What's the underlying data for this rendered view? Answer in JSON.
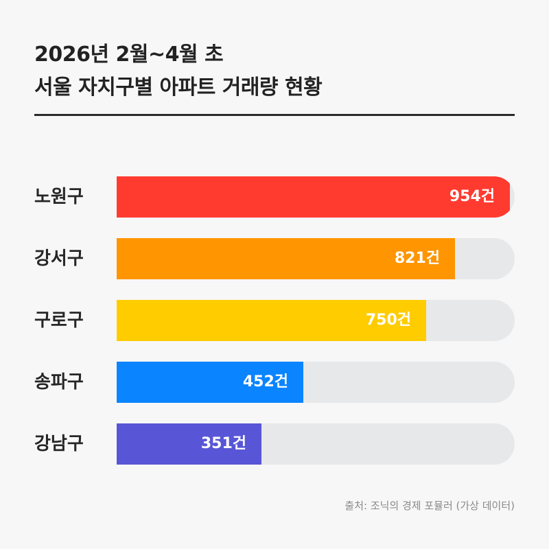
{
  "header": {
    "title_line1": "2026년 2월~4월 초",
    "title_line2": "서울 자치구별 아파트 거래량 현황"
  },
  "source": "출처: 조닉의 경제 포뮬러 (가상 데이터)",
  "chart_data": {
    "type": "bar",
    "orientation": "horizontal",
    "title": "2026년 2월~4월 초 서울 자치구별 아파트 거래량 현황",
    "categories": [
      "노원구",
      "강서구",
      "구로구",
      "송파구",
      "강남구"
    ],
    "values": [
      954,
      821,
      750,
      452,
      351
    ],
    "value_labels": [
      "954건",
      "821건",
      "750건",
      "452건",
      "351건"
    ],
    "colors": [
      "#ff3b30",
      "#ff9500",
      "#ffcc00",
      "#0a84ff",
      "#5856d6"
    ],
    "track_color": "#e7e8ea",
    "xlim": [
      0,
      965
    ],
    "xlabel": "",
    "ylabel": "",
    "grid": false,
    "legend": "none"
  }
}
